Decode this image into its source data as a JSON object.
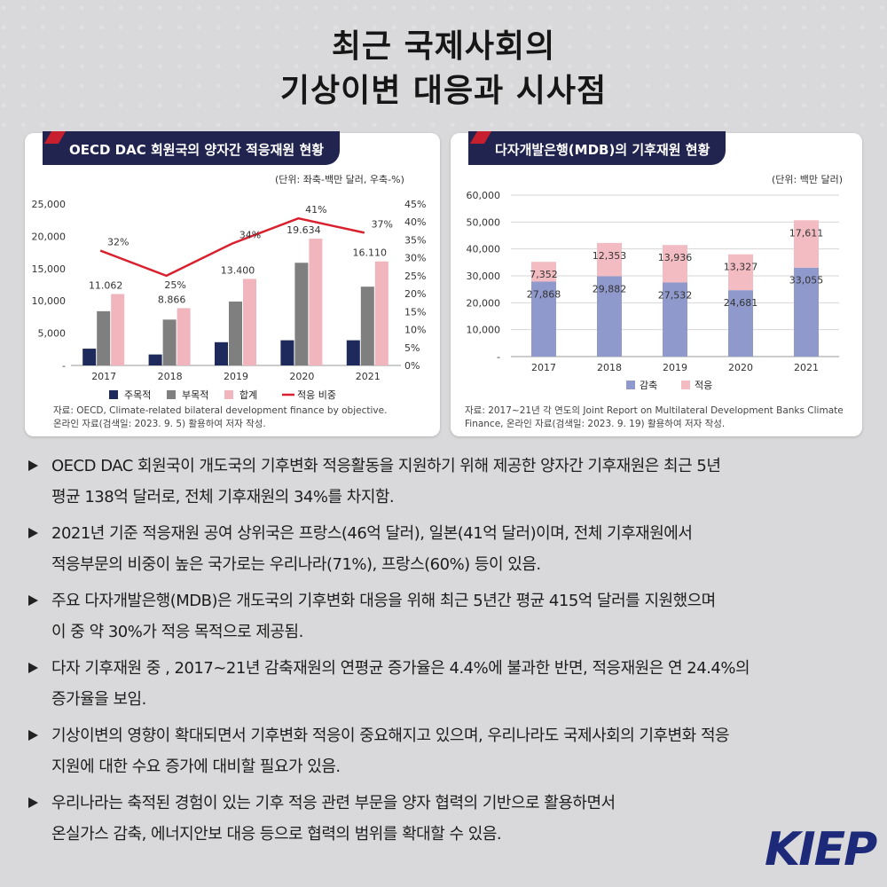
{
  "title_line1": "최근 국제사회의",
  "title_line2": "기상이변 대응과 시사점",
  "left_panel": {
    "tag": "OECD DAC 회원국의 양자간 적응재원 현황",
    "unit": "(단위: 좌축-백만 달러, 우축-%)",
    "source_line1": "자료: OECD, Climate-related bilateral development finance by objective.",
    "source_line2": "온라인 자료(검색일: 2023. 9. 5) 활용하여 저자 작성."
  },
  "right_panel": {
    "tag": "다자개발은행(MDB)의 기후재원 현황",
    "unit": "(단위: 백만 달러)",
    "source_line1": "자료: 2017~21년 각 연도의 Joint Report on Multilateral Development Banks Climate",
    "source_line2": "Finance, 온라인 자료(검색일: 2023. 9. 19) 활용하여 저자 작성."
  },
  "chart_data": [
    {
      "type": "bar",
      "categories": [
        "2017",
        "2018",
        "2019",
        "2020",
        "2021"
      ],
      "series": [
        {
          "name": "주목적",
          "values": [
            2600,
            1700,
            3600,
            3900,
            3900
          ],
          "color": "#1f2a5c"
        },
        {
          "name": "부목적",
          "values": [
            8400,
            7100,
            9900,
            15900,
            12200
          ],
          "color": "#7f7f7f"
        },
        {
          "name": "합계",
          "values": [
            11062,
            8866,
            13400,
            19634,
            16110
          ],
          "labels": [
            "11.062",
            "8.866",
            "13.400",
            "19.634",
            "16.110"
          ],
          "color": "#f0b5bd"
        },
        {
          "name": "적응 비중",
          "type": "line",
          "axis": "right",
          "values": [
            32,
            25,
            34,
            41,
            37
          ],
          "labels": [
            "32%",
            "25%",
            "34%",
            "41%",
            "37%"
          ],
          "color": "#d9202e"
        }
      ],
      "ylim_left": [
        0,
        25000
      ],
      "yticks_left": [
        "-",
        "5,000",
        "10,000",
        "15,000",
        "20,000",
        "25,000"
      ],
      "ylim_right": [
        0,
        45
      ],
      "yticks_right": [
        "0%",
        "5%",
        "10%",
        "15%",
        "20%",
        "25%",
        "30%",
        "35%",
        "40%",
        "45%"
      ],
      "legend": "bottom"
    },
    {
      "type": "bar",
      "stacked": true,
      "categories": [
        "2017",
        "2018",
        "2019",
        "2020",
        "2021"
      ],
      "series": [
        {
          "name": "감축",
          "values": [
            27868,
            29882,
            27532,
            24681,
            33055
          ],
          "labels": [
            "27,868",
            "29,882",
            "27,532",
            "24,681",
            "33,055"
          ],
          "color": "#8f99cc"
        },
        {
          "name": "적응",
          "values": [
            7352,
            12353,
            13936,
            13327,
            17611
          ],
          "labels": [
            "7,352",
            "12,353",
            "13,936",
            "13,327",
            "17,611"
          ],
          "color": "#f2bcc2"
        }
      ],
      "ylim": [
        0,
        60000
      ],
      "yticks": [
        "-",
        "10,000",
        "20,000",
        "30,000",
        "40,000",
        "50,000",
        "60,000"
      ],
      "grid": true,
      "legend": "bottom"
    }
  ],
  "bullets": [
    {
      "l1": "OECD DAC 회원국이 개도국의 기후변화 적응활동을 지원하기 위해 제공한 양자간 기후재원은 최근 5년",
      "l2": "평균 138억 달러로, 전체 기후재원의 34%를 차지함."
    },
    {
      "l1": "2021년 기준 적응재원 공여 상위국은 프랑스(46억 달러), 일본(41억 달러)이며, 전체 기후재원에서",
      "l2": "적응부문의 비중이 높은 국가로는 우리나라(71%), 프랑스(60%) 등이 있음."
    },
    {
      "l1": "주요 다자개발은행(MDB)은 개도국의 기후변화 대응을 위해 최근 5년간 평균 415억 달러를 지원했으며",
      "l2": "이 중 약 30%가 적응 목적으로 제공됨."
    },
    {
      "l1": "다자 기후재원 중 , 2017~21년 감축재원의 연평균 증가율은 4.4%에 불과한 반면, 적응재원은 연 24.4%의",
      "l2": "증가율을 보임."
    },
    {
      "l1": "기상이변의 영향이 확대되면서 기후변화 적응이 중요해지고 있으며, 우리나라도 국제사회의 기후변화 적응",
      "l2": "지원에 대한 수요 증가에 대비할 필요가 있음."
    },
    {
      "l1": "우리나라는 축적된 경험이 있는 기후 적응 관련 부문을 양자 협력의 기반으로 활용하면서",
      "l2": "온실가스 감축, 에너지안보 대응 등으로 협력의 범위를 확대할 수 있음."
    }
  ],
  "logo": "KIEP"
}
